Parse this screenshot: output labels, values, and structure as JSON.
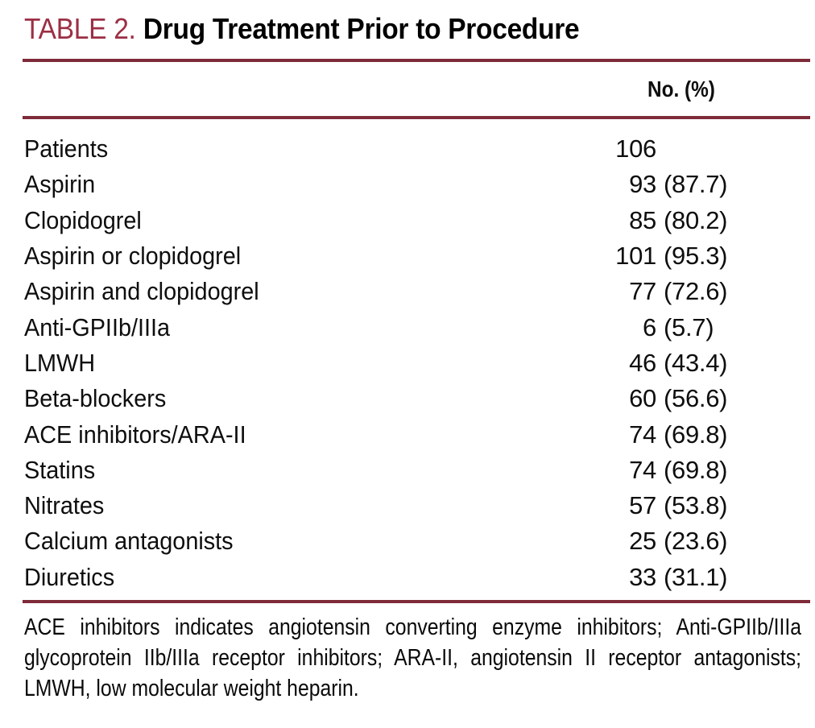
{
  "title": {
    "label": "TABLE 2.",
    "caption": "Drug Treatment Prior to Procedure"
  },
  "colors": {
    "accent_title": "#9c2f44",
    "rule": "#7e2a39",
    "text": "#0e0e0e",
    "background": "#ffffff"
  },
  "table": {
    "column_header": "No. (%)",
    "rows": [
      {
        "label": "Patients",
        "count": "106",
        "pct": ""
      },
      {
        "label": "Aspirin",
        "count": "93",
        "pct": "(87.7)"
      },
      {
        "label": "Clopidogrel",
        "count": "85",
        "pct": "(80.2)"
      },
      {
        "label": "Aspirin or clopidogrel",
        "count": "101",
        "pct": "(95.3)"
      },
      {
        "label": "Aspirin and clopidogrel",
        "count": "77",
        "pct": "(72.6)"
      },
      {
        "label": "Anti-GPIIb/IIIa",
        "count": "6",
        "pct": "(5.7)"
      },
      {
        "label": "LMWH",
        "count": "46",
        "pct": "(43.4)"
      },
      {
        "label": "Beta-blockers",
        "count": "60",
        "pct": "(56.6)"
      },
      {
        "label": "ACE inhibitors/ARA-II",
        "count": "74",
        "pct": "(69.8)"
      },
      {
        "label": "Statins",
        "count": "74",
        "pct": "(69.8)"
      },
      {
        "label": "Nitrates",
        "count": "57",
        "pct": "(53.8)"
      },
      {
        "label": "Calcium antagonists",
        "count": "25",
        "pct": "(23.6)"
      },
      {
        "label": "Diuretics",
        "count": "33",
        "pct": "(31.1)"
      }
    ]
  },
  "footnote": {
    "lines": [
      "ACE inhibitors indicates angiotensin converting enzyme inhibitors; Anti-GPIIb/IIIa",
      "glycoprotein IIb/IIIa receptor inhibitors; ARA-II, angiotensin II receptor antagonists;",
      "LMWH, low molecular weight heparin."
    ]
  }
}
